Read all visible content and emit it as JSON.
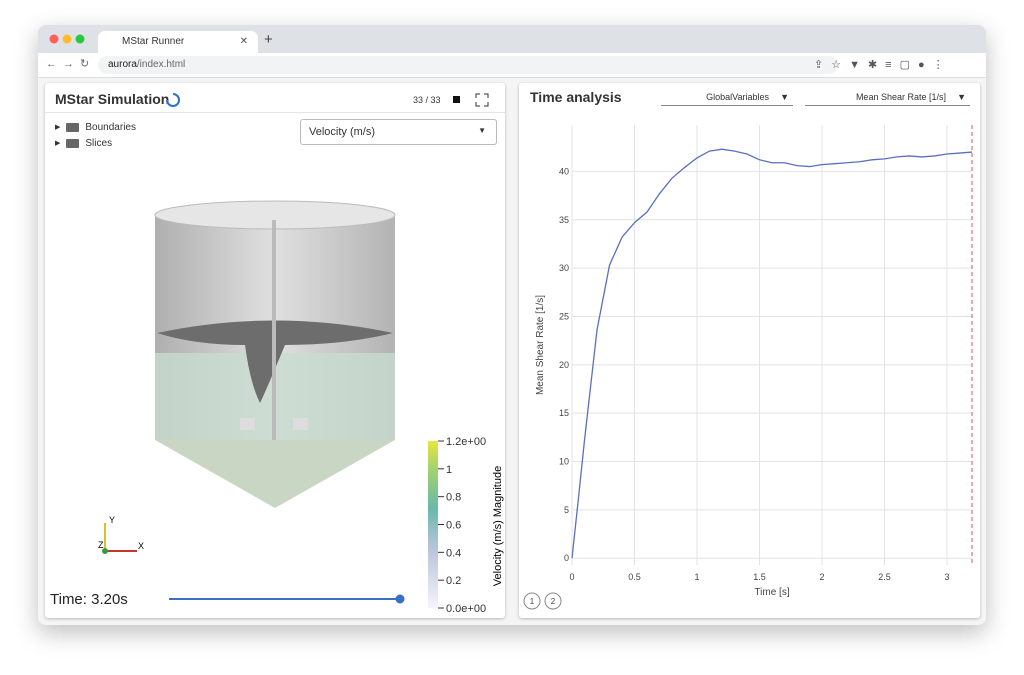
{
  "browser": {
    "tab_title": "MStar Runner",
    "url_host": "aurora",
    "url_path": "/index.html"
  },
  "left_panel": {
    "title": "MStar Simulation",
    "frame_counter": "33 / 33",
    "tree": [
      "Boundaries",
      "Slices"
    ],
    "field_select": "Velocity (m/s)",
    "axes_labels": [
      "Y",
      "Z",
      "X"
    ],
    "time_label": "Time: 3.20s",
    "colorbar": {
      "title": "Velocity (m/s) Magnitude",
      "range": [
        0,
        1.2
      ],
      "ticks": [
        {
          "value": 1.2,
          "label": "1.2e+00"
        },
        1,
        0.8,
        0.6,
        0.4,
        0.2,
        {
          "value": 0,
          "label": "0.0e+00"
        }
      ]
    }
  },
  "right_panel": {
    "title": "Time analysis",
    "group_select": "GlobalVariables",
    "variable_select": "Mean Shear Rate [1/s]",
    "pages": [
      "1",
      "2"
    ],
    "chart_data": {
      "type": "line",
      "x_label": "Time [s]",
      "y_label": "Mean Shear Rate [1/s]",
      "x": [
        0,
        0.05,
        0.1,
        0.2,
        0.3,
        0.4,
        0.5,
        0.6,
        0.7,
        0.8,
        0.9,
        1.0,
        1.1,
        1.2,
        1.3,
        1.4,
        1.5,
        1.6,
        1.7,
        1.8,
        1.9,
        2.0,
        2.1,
        2.2,
        2.3,
        2.4,
        2.5,
        2.6,
        2.7,
        2.8,
        2.9,
        3.0,
        3.1,
        3.2
      ],
      "series": [
        {
          "name": "Mean Shear Rate",
          "color": "#5b6fc0",
          "values": [
            0,
            6,
            12.2,
            23.6,
            30.3,
            33.2,
            34.7,
            35.8,
            37.7,
            39.3,
            40.4,
            41.4,
            42.1,
            42.3,
            42.1,
            41.8,
            41.2,
            40.9,
            40.9,
            40.6,
            40.5,
            40.7,
            40.8,
            40.9,
            41.0,
            41.2,
            41.3,
            41.5,
            41.6,
            41.5,
            41.6,
            41.8,
            41.9,
            42.0
          ]
        }
      ],
      "cursor_x": 3.2,
      "cursor_color": "#d9534f",
      "xlim": [
        0,
        3.2
      ],
      "xticks": [
        0,
        0.5,
        1,
        1.5,
        2,
        2.5,
        3
      ],
      "ylim": [
        -0.7,
        44.8
      ],
      "yticks": [
        0,
        5,
        10,
        15,
        20,
        25,
        30,
        35,
        40
      ],
      "grid": true
    }
  }
}
